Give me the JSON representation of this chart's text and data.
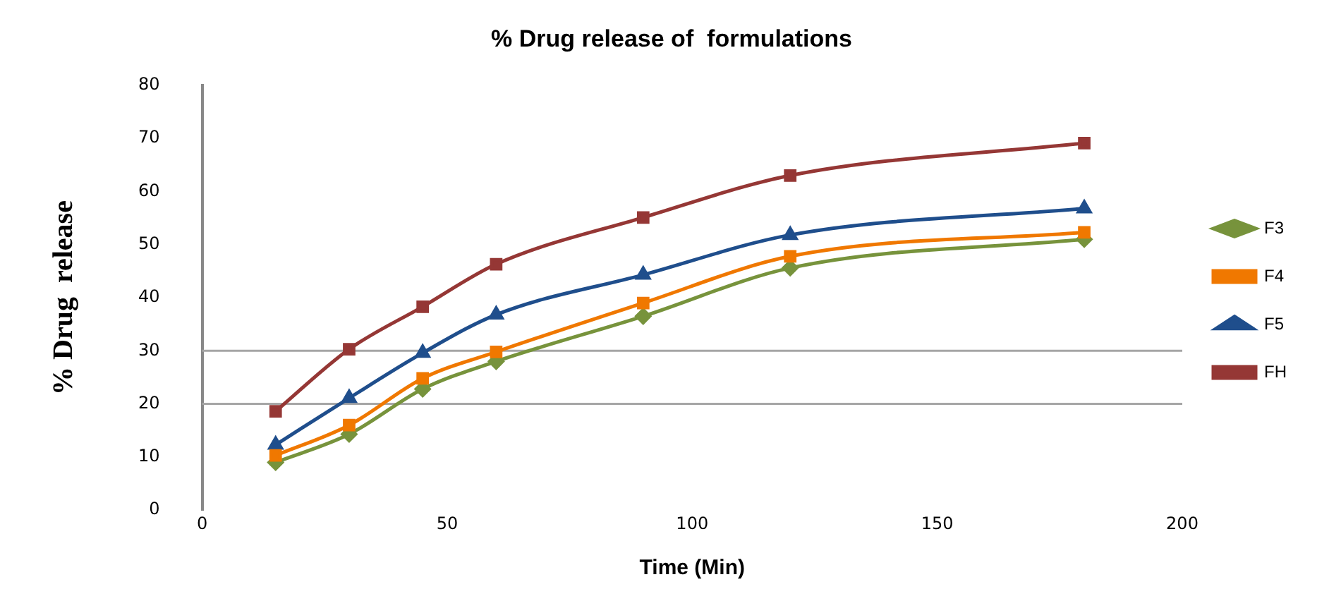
{
  "chart_data": {
    "type": "line",
    "title": "% Drug release of  formulations",
    "xlabel": "Time (Min)",
    "ylabel": "% Drug  release",
    "x": [
      15,
      30,
      45,
      60,
      90,
      120,
      180
    ],
    "series": [
      {
        "name": "F3",
        "color": "#77933c",
        "marker": "diamond",
        "values": [
          9,
          14.3,
          22.8,
          28,
          36.5,
          45.6,
          51
        ]
      },
      {
        "name": "F4",
        "color": "#f07800",
        "marker": "square",
        "values": [
          10.3,
          16,
          24.8,
          29.8,
          39,
          47.8,
          52.3
        ]
      },
      {
        "name": "F5",
        "color": "#1f4e8c",
        "marker": "triangle",
        "values": [
          12.3,
          21.1,
          29.6,
          36.8,
          44.3,
          51.8,
          56.8
        ]
      },
      {
        "name": "FH",
        "color": "#953735",
        "marker": "square",
        "values": [
          18.6,
          30.3,
          38.3,
          46.3,
          55.1,
          63,
          69.1
        ]
      }
    ],
    "xlim": [
      0,
      200
    ],
    "xticks": [
      0,
      50,
      100,
      150,
      200
    ],
    "ylim": [
      0,
      80
    ],
    "yticks": [
      0,
      10,
      20,
      30,
      40,
      50,
      60,
      70,
      80
    ],
    "ref_lines": [
      {
        "axis": "y",
        "value": 20,
        "color": "#a6a6a6"
      },
      {
        "axis": "y",
        "value": 30,
        "color": "#a6a6a6"
      }
    ],
    "grid": false,
    "legend": "right",
    "line_style": "solid"
  }
}
